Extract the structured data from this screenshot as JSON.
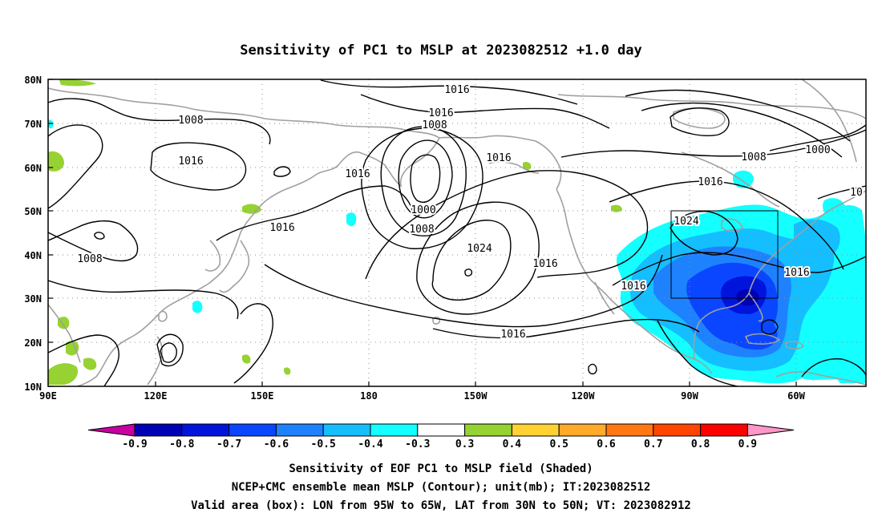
{
  "title": "Sensitivity of PC1 to MSLP at 2023082512 +1.0 day",
  "lat_ticks": [
    "80N",
    "70N",
    "60N",
    "50N",
    "40N",
    "30N",
    "20N",
    "10N"
  ],
  "lon_ticks": [
    "90E",
    "120E",
    "150E",
    "180",
    "150W",
    "120W",
    "90W",
    "60W"
  ],
  "contour_labels": [
    "1016",
    "1016",
    "1008",
    "1008",
    "1016",
    "1016",
    "1016",
    "1008",
    "1000",
    "1008",
    "1024",
    "1016",
    "1016",
    "1008",
    "1000",
    "1016",
    "1024",
    "1016",
    "1016",
    "1016",
    "10"
  ],
  "colorbar": {
    "labels": [
      "-0.9",
      "-0.8",
      "-0.7",
      "-0.6",
      "-0.5",
      "-0.4",
      "-0.3",
      "0.3",
      "0.4",
      "0.5",
      "0.6",
      "0.7",
      "0.8",
      "0.9"
    ],
    "colors": [
      "#0000b4",
      "#0014dc",
      "#0a46ff",
      "#1e82ff",
      "#14beff",
      "#14ffff",
      "#ffffff",
      "#96d232",
      "#ffd232",
      "#ffaa28",
      "#ff7814",
      "#ff4600",
      "#ff0000"
    ],
    "low_end_color": "#c800a0",
    "high_end_color": "#ff96c8"
  },
  "footer": {
    "line1": "Sensitivity of EOF PC1 to MSLP field (Shaded)",
    "line2": "NCEP+CMC ensemble mean MSLP (Contour); unit(mb); IT:2023082512",
    "line3": "Valid area (box): LON from 95W to 65W, LAT from 30N to 50N; VT: 2023082912"
  },
  "valid_box": {
    "lon_west": -95,
    "lon_east": -65,
    "lat_south": 30,
    "lat_north": 50
  },
  "colors": {
    "coast": "#a0a0a0",
    "contour": "#000000",
    "grid": "#8c8c8c"
  }
}
